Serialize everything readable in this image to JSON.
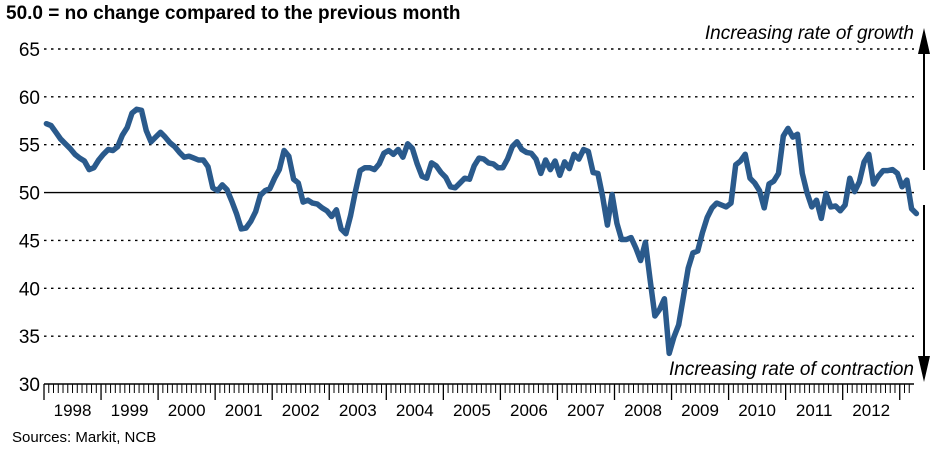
{
  "chart_data": {
    "type": "line",
    "title": "50.0 = no change compared to the previous month",
    "source": "Sources: Markit, NCB",
    "xlabel": "",
    "ylabel": "",
    "ylim": [
      30,
      65
    ],
    "yticks": [
      30,
      35,
      40,
      45,
      50,
      55,
      60,
      65
    ],
    "year_labels": [
      "1998",
      "1999",
      "2000",
      "2001",
      "2002",
      "2003",
      "2004",
      "2005",
      "2006",
      "2007",
      "2008",
      "2009",
      "2010",
      "2011",
      "2012"
    ],
    "x_start_year": 1998,
    "reference_line": 50,
    "annotations": {
      "growth": "Increasing rate of growth",
      "contraction": "Increasing rate of contraction"
    },
    "grid": "dotted horizontal",
    "line_color": "#2a5a8c",
    "series": [
      {
        "values": [
          57.2,
          57.0,
          56.3,
          55.6,
          55.1,
          54.6,
          54.0,
          53.6,
          53.3,
          52.4,
          52.6,
          53.4,
          54.0,
          54.5,
          54.4,
          54.8,
          56.0,
          56.8,
          58.3,
          58.7,
          58.6,
          56.5,
          55.3,
          55.8,
          56.3,
          55.8,
          55.2,
          54.8,
          54.2,
          53.7,
          53.8,
          53.6,
          53.4,
          53.4,
          52.7,
          50.5,
          50.2,
          50.8,
          50.3,
          49.1,
          47.8,
          46.2,
          46.3,
          47.0,
          48.0,
          49.7,
          50.2,
          50.4,
          51.5,
          52.4,
          54.4,
          53.8,
          51.4,
          51.0,
          49.0,
          49.2,
          48.9,
          48.8,
          48.4,
          48.1,
          47.5,
          48.2,
          46.2,
          45.7,
          47.6,
          50.1,
          52.3,
          52.6,
          52.6,
          52.4,
          53.0,
          54.1,
          54.4,
          54.0,
          54.5,
          53.7,
          55.1,
          54.6,
          53.0,
          51.7,
          51.5,
          53.1,
          52.8,
          52.1,
          51.6,
          50.6,
          50.5,
          51.0,
          51.5,
          51.4,
          52.8,
          53.6,
          53.5,
          53.1,
          53.0,
          52.6,
          52.6,
          53.5,
          54.8,
          55.3,
          54.5,
          54.2,
          54.1,
          53.5,
          52.0,
          53.4,
          52.4,
          53.3,
          51.8,
          53.2,
          52.5,
          54.0,
          53.5,
          54.5,
          54.3,
          52.1,
          52.0,
          49.6,
          46.6,
          49.8,
          46.8,
          45.1,
          45.1,
          45.3,
          44.2,
          42.9,
          44.8,
          40.9,
          37.1,
          37.8,
          38.9,
          33.2,
          34.9,
          36.2,
          39.1,
          42.1,
          43.7,
          43.9,
          45.8,
          47.4,
          48.4,
          48.9,
          48.7,
          48.5,
          48.9,
          52.9,
          53.3,
          54.0,
          51.5,
          51.0,
          50.2,
          48.4,
          50.9,
          51.2,
          52.0,
          55.9,
          56.7,
          55.8,
          56.1,
          52.0,
          50.0,
          48.5,
          49.2,
          47.3,
          49.9,
          48.5,
          48.6,
          48.1,
          48.7,
          51.5,
          50.1,
          51.1,
          53.2,
          54.0,
          50.9,
          51.7,
          52.3,
          52.3,
          52.4,
          52.0,
          50.6,
          51.3,
          48.3,
          47.8
        ]
      }
    ]
  }
}
